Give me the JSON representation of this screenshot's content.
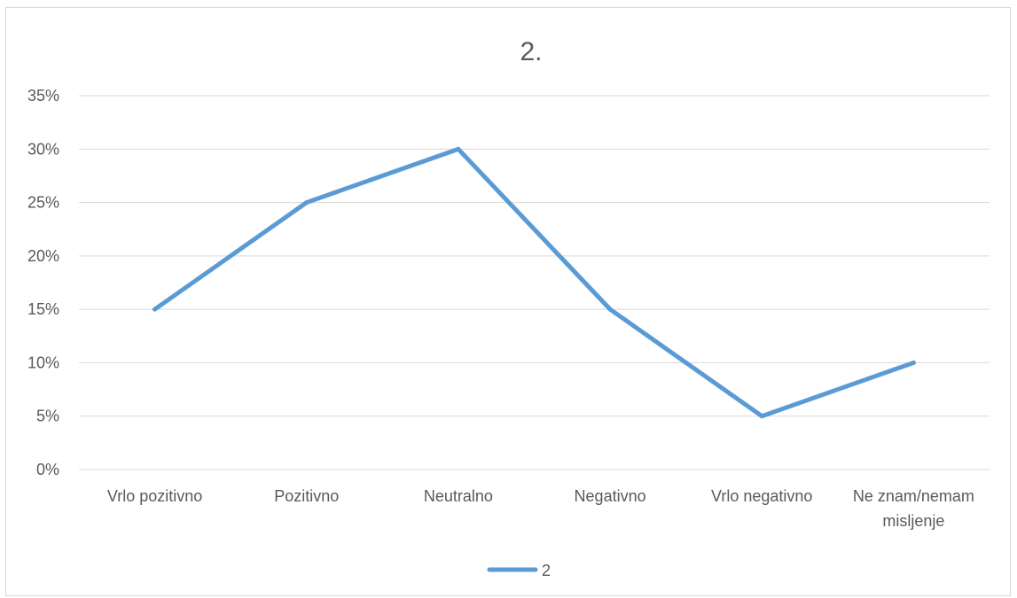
{
  "chart_data": {
    "type": "line",
    "title": "2.",
    "categories": [
      [
        "Vrlo pozitivno"
      ],
      [
        "Pozitivno"
      ],
      [
        "Neutralno"
      ],
      [
        "Negativno"
      ],
      [
        "Vrlo negativno"
      ],
      [
        "Ne znam/nemam",
        "misljenje"
      ]
    ],
    "series": [
      {
        "name": "2",
        "values": [
          15,
          25,
          30,
          15,
          5,
          10
        ],
        "color": "#5b9bd5"
      }
    ],
    "ylim": [
      0,
      35
    ],
    "yticks": [
      "0%",
      "5%",
      "10%",
      "15%",
      "20%",
      "25%",
      "30%",
      "35%"
    ],
    "grid": true,
    "legend": "bottom"
  }
}
